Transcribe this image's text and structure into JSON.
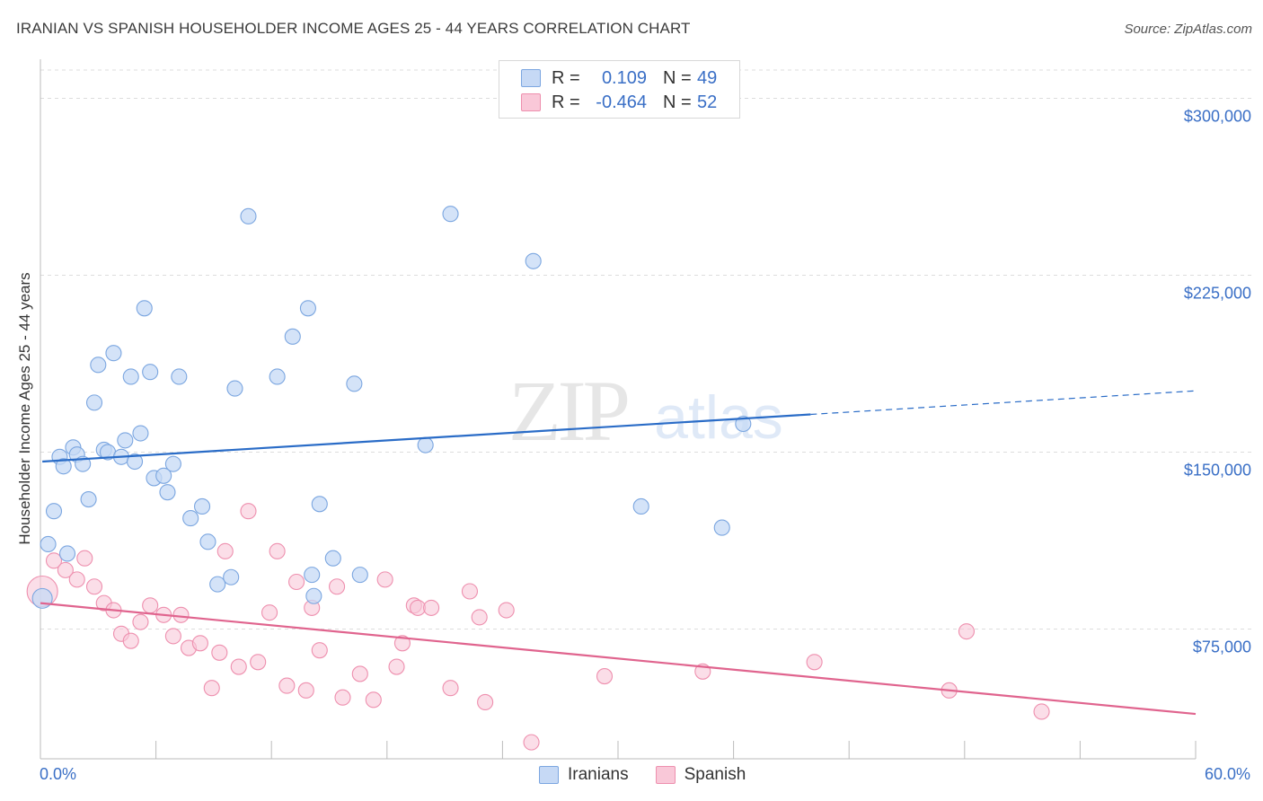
{
  "title": "IRANIAN VS SPANISH HOUSEHOLDER INCOME AGES 25 - 44 YEARS CORRELATION CHART",
  "source": "Source: ZipAtlas.com",
  "watermark": {
    "zip": "ZIP",
    "atlas": "atlas"
  },
  "colors": {
    "blue_fill": "#c6d9f5",
    "blue_stroke": "#7ba6e0",
    "blue_line": "#2a6cc7",
    "pink_fill": "#f9c8d8",
    "pink_stroke": "#ee8fae",
    "pink_line": "#e0648e",
    "axis_text": "#3a6fc6",
    "grid": "#dddddd"
  },
  "legend": {
    "rows": [
      {
        "r_label": "R =",
        "r_value": "0.109",
        "n_label": "N =",
        "n_value": "49"
      },
      {
        "r_label": "R =",
        "r_value": "-0.464",
        "n_label": "N =",
        "n_value": "52"
      }
    ]
  },
  "bottom_legend": {
    "series1": "Iranians",
    "series2": "Spanish"
  },
  "chart_data": {
    "type": "scatter",
    "title": "IRANIAN VS SPANISH HOUSEHOLDER INCOME AGES 25 - 44 YEARS CORRELATION CHART",
    "xlabel": "",
    "ylabel": "Householder Income Ages 25 - 44 years",
    "x_tick_labels": [
      "0.0%",
      "60.0%"
    ],
    "y_tick_labels": [
      "$75,000",
      "$150,000",
      "$225,000",
      "$300,000"
    ],
    "y_ticks": [
      75000,
      150000,
      225000,
      300000
    ],
    "xlim": [
      0,
      60
    ],
    "ylim": [
      20000,
      312000
    ],
    "grid": true,
    "legend_placement": "top-center",
    "series": [
      {
        "name": "Iranians",
        "trend": {
          "x0": 0.1,
          "y0": 146000,
          "x1": 40.0,
          "y1": 166000,
          "dash_x1": 60.0,
          "dash_y1": 176000
        },
        "points": [
          [
            0.1,
            88000
          ],
          [
            0.4,
            111000
          ],
          [
            0.7,
            125000
          ],
          [
            1.0,
            148000
          ],
          [
            1.2,
            144000
          ],
          [
            1.4,
            107000
          ],
          [
            1.7,
            152000
          ],
          [
            1.9,
            149000
          ],
          [
            2.2,
            145000
          ],
          [
            2.5,
            130000
          ],
          [
            2.8,
            171000
          ],
          [
            3.0,
            187000
          ],
          [
            3.3,
            151000
          ],
          [
            3.5,
            150000
          ],
          [
            3.8,
            192000
          ],
          [
            4.2,
            148000
          ],
          [
            4.4,
            155000
          ],
          [
            4.7,
            182000
          ],
          [
            4.9,
            146000
          ],
          [
            5.2,
            158000
          ],
          [
            5.4,
            211000
          ],
          [
            5.7,
            184000
          ],
          [
            5.9,
            139000
          ],
          [
            6.4,
            140000
          ],
          [
            6.6,
            133000
          ],
          [
            6.9,
            145000
          ],
          [
            7.2,
            182000
          ],
          [
            7.8,
            122000
          ],
          [
            8.4,
            127000
          ],
          [
            8.7,
            112000
          ],
          [
            9.2,
            94000
          ],
          [
            9.9,
            97000
          ],
          [
            10.1,
            177000
          ],
          [
            10.8,
            250000
          ],
          [
            12.3,
            182000
          ],
          [
            13.1,
            199000
          ],
          [
            13.9,
            211000
          ],
          [
            14.1,
            98000
          ],
          [
            14.2,
            89000
          ],
          [
            14.5,
            128000
          ],
          [
            15.2,
            105000
          ],
          [
            16.3,
            179000
          ],
          [
            16.6,
            98000
          ],
          [
            20.0,
            153000
          ],
          [
            21.3,
            251000
          ],
          [
            25.6,
            231000
          ],
          [
            31.2,
            127000
          ],
          [
            35.4,
            118000
          ],
          [
            36.5,
            162000
          ]
        ]
      },
      {
        "name": "Spanish",
        "trend": {
          "x0": 0.0,
          "y0": 86000,
          "x1": 60.0,
          "y1": 39000
        },
        "points": [
          [
            0.1,
            91000
          ],
          [
            0.7,
            104000
          ],
          [
            1.3,
            100000
          ],
          [
            1.9,
            96000
          ],
          [
            2.3,
            105000
          ],
          [
            2.8,
            93000
          ],
          [
            3.3,
            86000
          ],
          [
            3.8,
            83000
          ],
          [
            4.2,
            73000
          ],
          [
            4.7,
            70000
          ],
          [
            5.2,
            78000
          ],
          [
            5.7,
            85000
          ],
          [
            6.4,
            81000
          ],
          [
            6.9,
            72000
          ],
          [
            7.3,
            81000
          ],
          [
            7.7,
            67000
          ],
          [
            8.3,
            69000
          ],
          [
            8.9,
            50000
          ],
          [
            9.3,
            65000
          ],
          [
            9.6,
            108000
          ],
          [
            10.3,
            59000
          ],
          [
            10.8,
            125000
          ],
          [
            11.3,
            61000
          ],
          [
            11.9,
            82000
          ],
          [
            12.3,
            108000
          ],
          [
            12.8,
            51000
          ],
          [
            13.3,
            95000
          ],
          [
            13.8,
            49000
          ],
          [
            14.1,
            84000
          ],
          [
            14.5,
            66000
          ],
          [
            15.4,
            93000
          ],
          [
            15.7,
            46000
          ],
          [
            16.6,
            56000
          ],
          [
            17.3,
            45000
          ],
          [
            17.9,
            96000
          ],
          [
            18.5,
            59000
          ],
          [
            18.8,
            69000
          ],
          [
            19.4,
            85000
          ],
          [
            19.6,
            84000
          ],
          [
            20.3,
            84000
          ],
          [
            21.3,
            50000
          ],
          [
            22.3,
            91000
          ],
          [
            22.8,
            80000
          ],
          [
            23.1,
            44000
          ],
          [
            24.2,
            83000
          ],
          [
            25.5,
            27000
          ],
          [
            29.3,
            55000
          ],
          [
            34.4,
            57000
          ],
          [
            40.2,
            61000
          ],
          [
            47.2,
            49000
          ],
          [
            48.1,
            74000
          ],
          [
            52.0,
            40000
          ]
        ]
      }
    ]
  }
}
